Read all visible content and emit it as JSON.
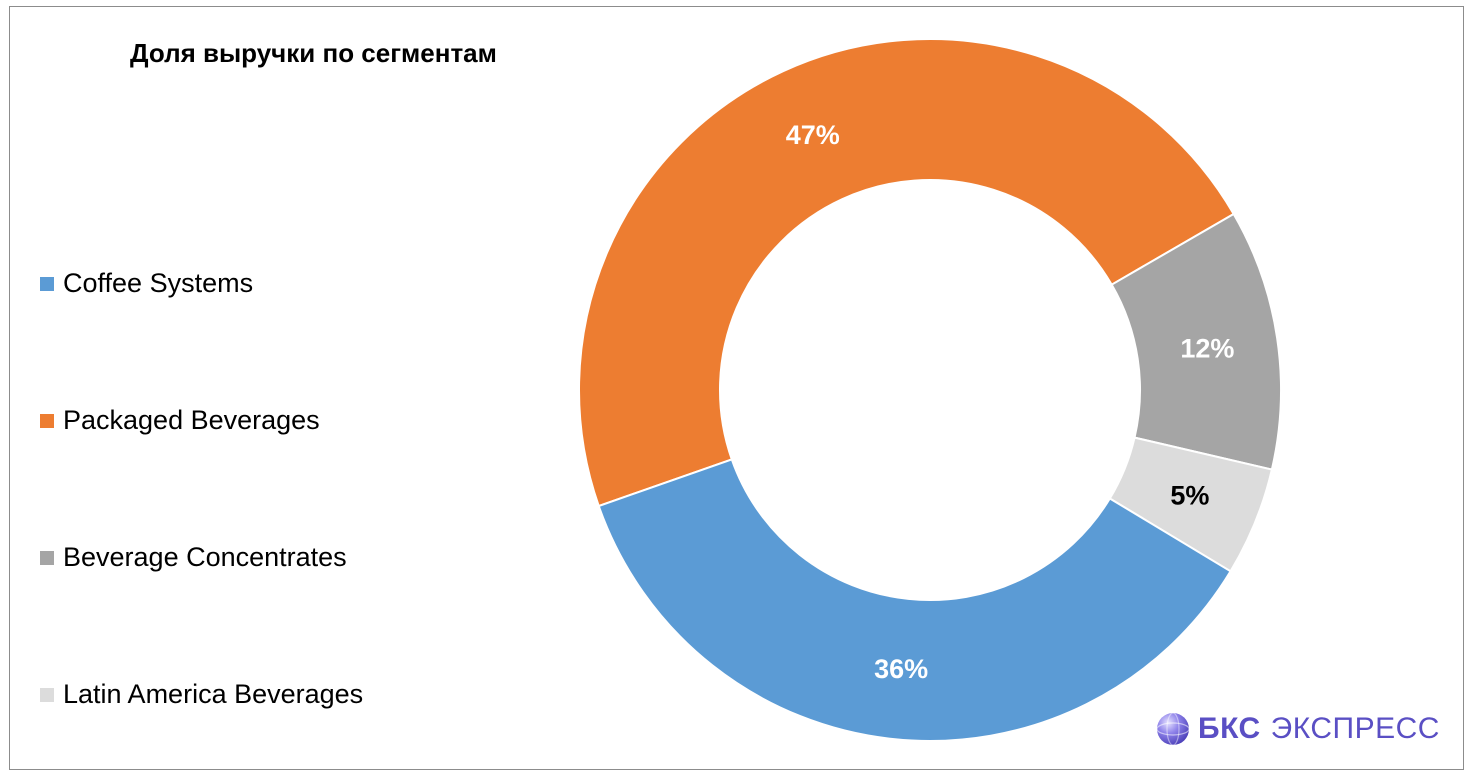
{
  "chart_data": {
    "type": "pie",
    "variant": "donut",
    "title": "Доля выручки по сегментам",
    "categories": [
      "Coffee Systems",
      "Packaged Beverages",
      "Beverage Concentrates",
      "Latin America Beverages"
    ],
    "values": [
      36,
      47,
      12,
      5
    ],
    "labels": [
      "36%",
      "47%",
      "12%",
      "5%"
    ],
    "colors": [
      "#5b9bd5",
      "#ed7d31",
      "#a5a5a5",
      "#dcdcdc"
    ],
    "label_colors": [
      "#ffffff",
      "#ffffff",
      "#ffffff",
      "#000000"
    ],
    "legend_position": "left"
  },
  "branding": {
    "logo_text_bold": "БКС",
    "logo_text_light": "ЭКСПРЕСС",
    "logo_icon": "bks-sphere-icon",
    "logo_color": "#5a4fc4"
  }
}
